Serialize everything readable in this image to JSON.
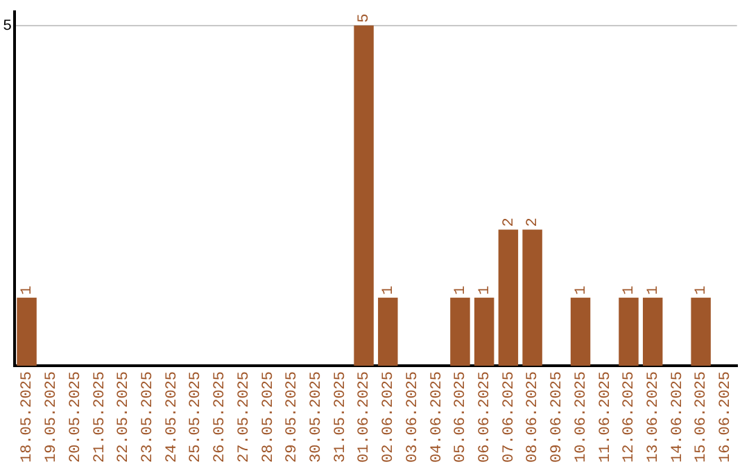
{
  "chart_data": {
    "type": "bar",
    "categories": [
      "18.05.2025",
      "19.05.2025",
      "20.05.2025",
      "21.05.2025",
      "22.05.2025",
      "23.05.2025",
      "24.05.2025",
      "25.05.2025",
      "26.05.2025",
      "27.05.2025",
      "28.05.2025",
      "29.05.2025",
      "30.05.2025",
      "31.05.2025",
      "01.06.2025",
      "02.06.2025",
      "03.06.2025",
      "04.06.2025",
      "05.06.2025",
      "06.06.2025",
      "07.06.2025",
      "08.06.2025",
      "09.06.2025",
      "10.06.2025",
      "11.06.2025",
      "12.06.2025",
      "13.06.2025",
      "14.06.2025",
      "15.06.2025",
      "16.06.2025"
    ],
    "values": [
      1,
      0,
      0,
      0,
      0,
      0,
      0,
      0,
      0,
      0,
      0,
      0,
      0,
      0,
      5,
      1,
      0,
      0,
      1,
      1,
      2,
      2,
      0,
      1,
      0,
      1,
      1,
      0,
      1,
      0
    ],
    "value_labels": [
      "1",
      null,
      null,
      null,
      null,
      null,
      null,
      null,
      null,
      null,
      null,
      null,
      null,
      null,
      "5",
      "1",
      null,
      null,
      "1",
      "1",
      "2",
      "2",
      null,
      "1",
      null,
      "1",
      "1",
      null,
      "1",
      null
    ],
    "color": "#a0572a",
    "ylim": [
      0,
      5.2
    ],
    "yticks": [
      5
    ],
    "grid": "y",
    "legend": false
  }
}
